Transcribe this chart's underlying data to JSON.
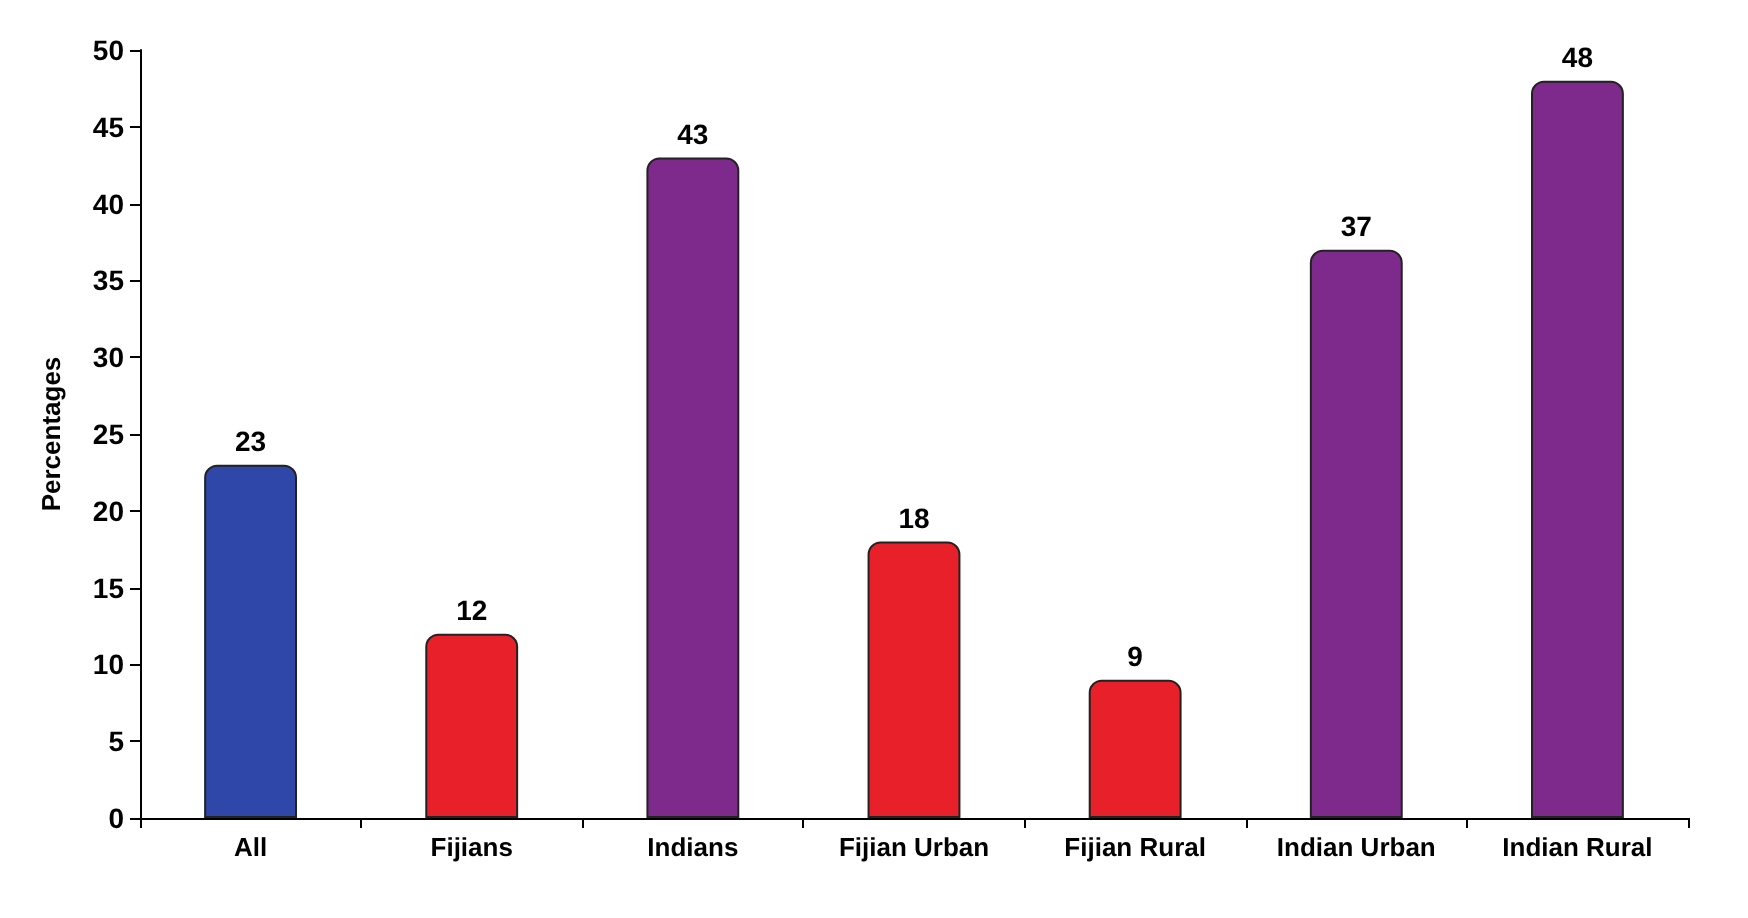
{
  "chart_data": {
    "type": "bar",
    "ylabel": "Percentages",
    "categories": [
      "All",
      "Fijians",
      "Indians",
      "Fijian Urban",
      "Fijian Rural",
      "Indian Urban",
      "Indian Rural"
    ],
    "values": [
      23,
      12,
      43,
      18,
      9,
      37,
      48
    ],
    "colors": [
      "#2f47a8",
      "#e8202a",
      "#7d2a8c",
      "#e8202a",
      "#e8202a",
      "#7d2a8c",
      "#7d2a8c"
    ],
    "ylim": [
      0,
      50
    ],
    "yticks": [
      0,
      5,
      10,
      15,
      20,
      25,
      30,
      35,
      40,
      45,
      50
    ],
    "grid": false,
    "data_labels": true
  }
}
